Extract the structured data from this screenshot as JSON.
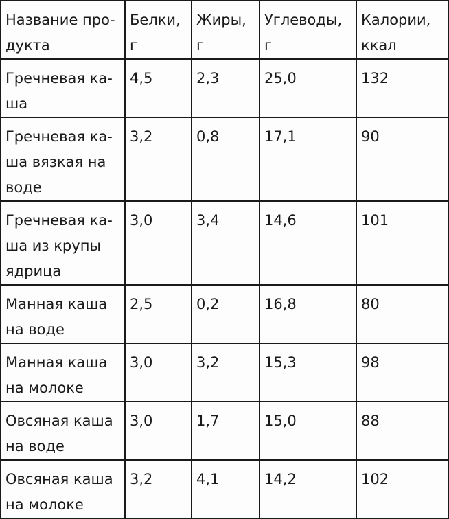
{
  "table": {
    "headers": [
      "Название про-\nдукта",
      "Белки,\nг",
      "Жиры,\nг",
      "Углеводы, г",
      "Калории,\nккал"
    ],
    "rows": [
      [
        "Гречневая ка-\nша",
        "4,5",
        "2,3",
        "25,0",
        "132"
      ],
      [
        "Гречневая ка-\nша вязкая на\nводе",
        "3,2",
        "0,8",
        "17,1",
        "90"
      ],
      [
        "Гречневая ка-\nша из крупы\nядрица",
        "3,0",
        "3,4",
        "14,6",
        "101"
      ],
      [
        "Манная каша\nна воде",
        "2,5",
        "0,2",
        "16,8",
        "80"
      ],
      [
        "Манная каша\nна молоке",
        "3,0",
        "3,2",
        "15,3",
        "98"
      ],
      [
        "Овсяная каша\nна воде",
        "3,0",
        "1,7",
        "15,0",
        "88"
      ],
      [
        "Овсяная каша\nна молоке",
        "3,2",
        "4,1",
        "14,2",
        "102"
      ]
    ]
  }
}
